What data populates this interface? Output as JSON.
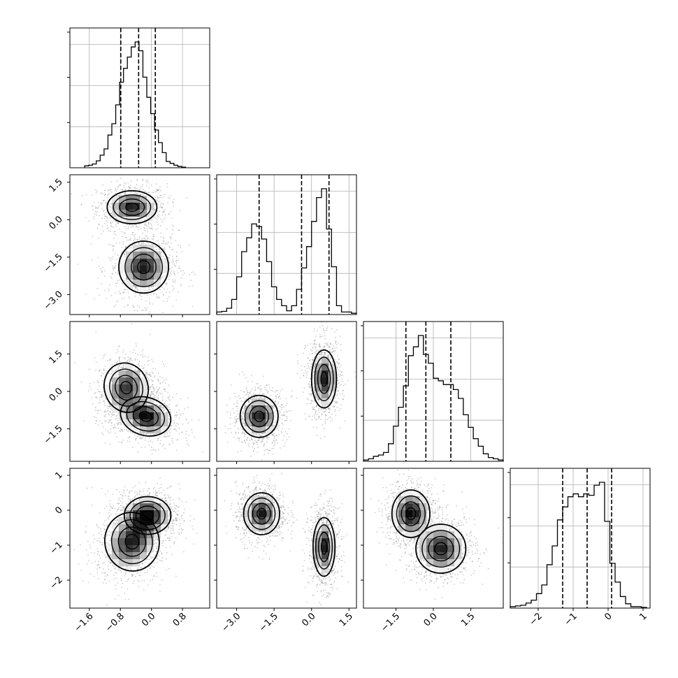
{
  "chart_data": {
    "type": "corner",
    "n_params": 4,
    "grid": true,
    "params": [
      {
        "range": [
          -2.1,
          1.5
        ],
        "ticks": [
          -1.6,
          -0.8,
          0.0,
          0.8
        ],
        "tick_labels": [
          "−1.6",
          "−0.8",
          "0.0",
          "0.8"
        ],
        "quantiles": [
          -0.79,
          -0.33,
          0.1
        ],
        "hist": {
          "edges_from": -1.72,
          "bin_width": 0.1,
          "counts": [
            0.015,
            0.02,
            0.03,
            0.055,
            0.1,
            0.15,
            0.26,
            0.35,
            0.5,
            0.68,
            0.79,
            0.88,
            0.96,
            1.0,
            0.93,
            0.72,
            0.56,
            0.43,
            0.3,
            0.2,
            0.12,
            0.05,
            0.035,
            0.02,
            0.01,
            0.005
          ]
        }
      },
      {
        "range": [
          -3.8,
          1.8
        ],
        "ticks": [
          -3.0,
          -1.5,
          0.0,
          1.5
        ],
        "tick_labels": [
          "−3.0",
          "−1.5",
          "0.0",
          "1.5"
        ],
        "quantiles": [
          -2.1,
          -0.4,
          0.7
        ],
        "hist": {
          "edges_from": -3.8,
          "bin_width": 0.2,
          "counts": [
            0.02,
            0.025,
            0.05,
            0.12,
            0.3,
            0.5,
            0.61,
            0.72,
            0.7,
            0.6,
            0.42,
            0.22,
            0.12,
            0.07,
            0.03,
            0.07,
            0.2,
            0.37,
            0.54,
            0.74,
            0.93,
            1.0,
            0.68,
            0.38,
            0.07,
            0.02,
            0.02,
            0.01
          ]
        }
      },
      {
        "range": [
          -2.8,
          2.8
        ],
        "ticks": [
          -1.5,
          0.0,
          1.5
        ],
        "tick_labels": [
          "−1.5",
          "0.0",
          "1.5"
        ],
        "quantiles": [
          -1.1,
          -0.3,
          0.7
        ],
        "hist": {
          "edges_from": -2.8,
          "bin_width": 0.2,
          "counts": [
            0.01,
            0.02,
            0.04,
            0.05,
            0.07,
            0.14,
            0.28,
            0.43,
            0.6,
            0.84,
            0.91,
            1.0,
            0.85,
            0.78,
            0.66,
            0.64,
            0.61,
            0.61,
            0.57,
            0.5,
            0.37,
            0.27,
            0.18,
            0.12,
            0.06,
            0.03,
            0.02,
            0.01
          ]
        }
      },
      {
        "range": [
          -2.8,
          1.2
        ],
        "ticks": [
          -2,
          -1,
          0,
          1
        ],
        "tick_labels": [
          "−2",
          "−1",
          "0",
          "1"
        ],
        "quantiles": [
          -1.3,
          -0.6,
          0.1
        ],
        "hist": {
          "edges_from": -2.8,
          "bin_width": 0.15,
          "counts": [
            0.01,
            0.015,
            0.02,
            0.035,
            0.055,
            0.1,
            0.16,
            0.3,
            0.43,
            0.61,
            0.7,
            0.77,
            0.79,
            0.77,
            0.79,
            0.78,
            0.85,
            0.87,
            0.6,
            0.31,
            0.18,
            0.08,
            0.03,
            0.01,
            0.01,
            0.005
          ]
        }
      }
    ],
    "joint": [
      {
        "row": 1,
        "col": 0,
        "modes": [
          {
            "x": -0.5,
            "y": 0.5,
            "sx": 0.32,
            "sy": 0.33,
            "r": 0.0,
            "w": 1.0
          },
          {
            "x": -0.2,
            "y": -1.9,
            "sx": 0.32,
            "sy": 0.52,
            "r": 0.0,
            "w": 1.0
          }
        ]
      },
      {
        "row": 2,
        "col": 0,
        "modes": [
          {
            "x": -0.65,
            "y": 0.15,
            "sx": 0.28,
            "sy": 0.5,
            "r": 0.2,
            "w": 0.9
          },
          {
            "x": -0.15,
            "y": -1.0,
            "sx": 0.33,
            "sy": 0.38,
            "r": -0.3,
            "w": 1.1
          }
        ]
      },
      {
        "row": 2,
        "col": 1,
        "modes": [
          {
            "x": -2.1,
            "y": -1.0,
            "sx": 0.38,
            "sy": 0.42,
            "r": 0.0,
            "w": 1.0
          },
          {
            "x": 0.5,
            "y": 0.5,
            "sx": 0.25,
            "sy": 0.58,
            "r": 0.0,
            "w": 1.0
          }
        ]
      },
      {
        "row": 3,
        "col": 0,
        "modes": [
          {
            "x": -0.5,
            "y": -0.9,
            "sx": 0.35,
            "sy": 0.42,
            "r": 0.25,
            "w": 1.0
          },
          {
            "x": -0.1,
            "y": -0.15,
            "sx": 0.3,
            "sy": 0.27,
            "r": 0.0,
            "w": 1.1
          }
        ]
      },
      {
        "row": 3,
        "col": 1,
        "modes": [
          {
            "x": -2.0,
            "y": -0.1,
            "sx": 0.36,
            "sy": 0.3,
            "r": 0.0,
            "w": 1.0
          },
          {
            "x": 0.5,
            "y": -1.05,
            "sx": 0.22,
            "sy": 0.42,
            "r": 0.0,
            "w": 1.0
          }
        ]
      },
      {
        "row": 3,
        "col": 2,
        "modes": [
          {
            "x": -0.9,
            "y": -0.1,
            "sx": 0.38,
            "sy": 0.34,
            "r": 0.0,
            "w": 1.1
          },
          {
            "x": 0.3,
            "y": -1.1,
            "sx": 0.5,
            "sy": 0.35,
            "r": 0.0,
            "w": 1.0
          }
        ]
      }
    ],
    "contour_levels": [
      0.5,
      1.0,
      1.5,
      2.0
    ]
  }
}
